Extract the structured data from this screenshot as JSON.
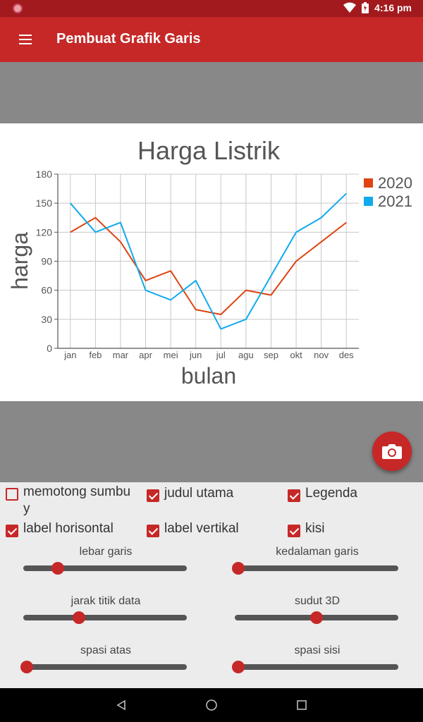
{
  "status": {
    "time": "4:16 pm"
  },
  "app": {
    "title": "Pembuat Grafik Garis"
  },
  "chart_data": {
    "type": "line",
    "title": "Harga Listrik",
    "xlabel": "bulan",
    "ylabel": "harga",
    "categories": [
      "jan",
      "feb",
      "mar",
      "apr",
      "mei",
      "jun",
      "jul",
      "agu",
      "sep",
      "okt",
      "nov",
      "des"
    ],
    "ylim": [
      0,
      180
    ],
    "yticks": [
      0,
      30,
      60,
      90,
      120,
      150,
      180
    ],
    "grid": true,
    "legend": "top-right",
    "series": [
      {
        "name": "2020",
        "color": "#dd4411",
        "values": [
          120,
          135,
          110,
          70,
          80,
          40,
          35,
          60,
          55,
          90,
          110,
          130
        ]
      },
      {
        "name": "2021",
        "color": "#11aaee",
        "values": [
          150,
          120,
          130,
          60,
          50,
          70,
          20,
          30,
          75,
          120,
          135,
          160
        ]
      }
    ]
  },
  "options": {
    "checkboxes": [
      {
        "label": "memotong sumbu y",
        "checked": false
      },
      {
        "label": "judul utama",
        "checked": true
      },
      {
        "label": "Legenda",
        "checked": true
      },
      {
        "label": "label horisontal",
        "checked": true
      },
      {
        "label": "label vertikal",
        "checked": true
      },
      {
        "label": "kisi",
        "checked": true
      }
    ],
    "sliders": [
      {
        "label": "lebar garis",
        "value": 0.21
      },
      {
        "label": "kedalaman garis",
        "value": 0.02
      },
      {
        "label": "jarak titik data",
        "value": 0.34
      },
      {
        "label": "sudut 3D",
        "value": 0.5
      },
      {
        "label": "spasi atas",
        "value": 0.02
      },
      {
        "label": "spasi sisi",
        "value": 0.02
      }
    ]
  },
  "icons": {
    "menu": "hamburger-icon",
    "camera": "camera-icon",
    "nav": [
      "back-icon",
      "home-icon",
      "recents-icon"
    ]
  }
}
